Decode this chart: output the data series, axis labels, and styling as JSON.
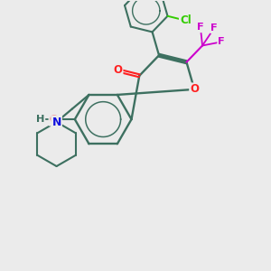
{
  "background_color": "#ebebeb",
  "bond_color": "#3d7060",
  "atom_colors": {
    "O": "#ff2020",
    "N": "#1010dd",
    "F": "#cc00cc",
    "Cl": "#33cc00",
    "H": "#3d7060",
    "C": "#3d7060"
  },
  "figsize": [
    3.0,
    3.0
  ],
  "dpi": 100
}
